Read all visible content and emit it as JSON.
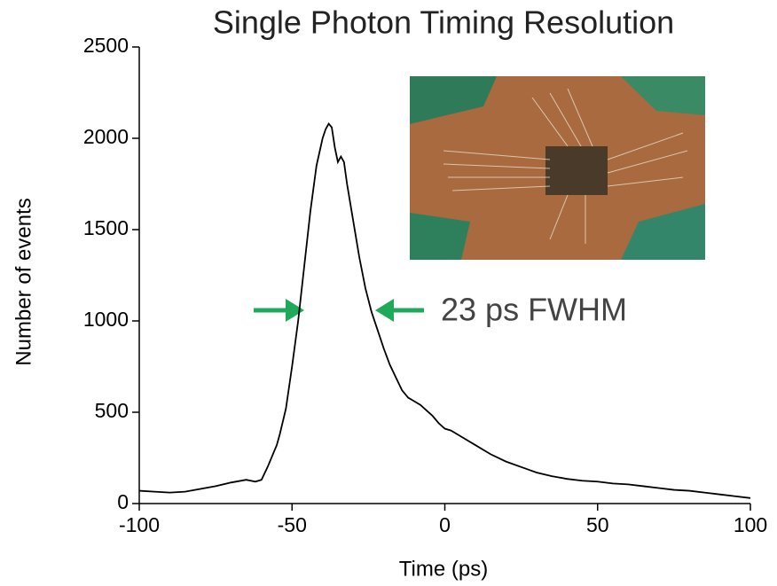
{
  "chart_data": {
    "type": "line",
    "title": "Single Photon Timing Resolution",
    "x_label": "Time (ps)",
    "y_label": "Number of events",
    "annotation": "23 ps FWHM",
    "color": "#000000",
    "x": [
      -100,
      -95,
      -90,
      -85,
      -80,
      -75,
      -70,
      -65,
      -62,
      -60,
      -58,
      -56,
      -55,
      -54,
      -52,
      -50,
      -48,
      -46,
      -44,
      -42,
      -40,
      -39,
      -38,
      -37,
      -36,
      -35,
      -34,
      -33,
      -32,
      -30,
      -28,
      -26,
      -24,
      -22,
      -20,
      -18,
      -16,
      -14,
      -12,
      -10,
      -8,
      -6,
      -4,
      -2,
      0,
      2,
      5,
      10,
      15,
      20,
      25,
      30,
      35,
      40,
      45,
      50,
      55,
      60,
      65,
      70,
      75,
      80,
      85,
      90,
      95,
      100
    ],
    "values": [
      70,
      65,
      60,
      65,
      80,
      95,
      115,
      130,
      120,
      130,
      200,
      280,
      320,
      380,
      520,
      750,
      1000,
      1300,
      1600,
      1850,
      2000,
      2050,
      2080,
      2060,
      1950,
      1870,
      1900,
      1870,
      1750,
      1550,
      1350,
      1180,
      1050,
      950,
      850,
      760,
      690,
      620,
      580,
      560,
      540,
      510,
      480,
      440,
      410,
      400,
      370,
      320,
      270,
      230,
      200,
      170,
      150,
      135,
      125,
      120,
      110,
      105,
      95,
      85,
      75,
      70,
      60,
      50,
      40,
      30
    ],
    "xlim": [
      -100,
      100
    ],
    "xticks": [
      -100,
      -50,
      0,
      50,
      100
    ],
    "ylim": [
      0,
      2500
    ],
    "yticks": [
      0,
      500,
      1000,
      1500,
      2000,
      2500
    ]
  }
}
